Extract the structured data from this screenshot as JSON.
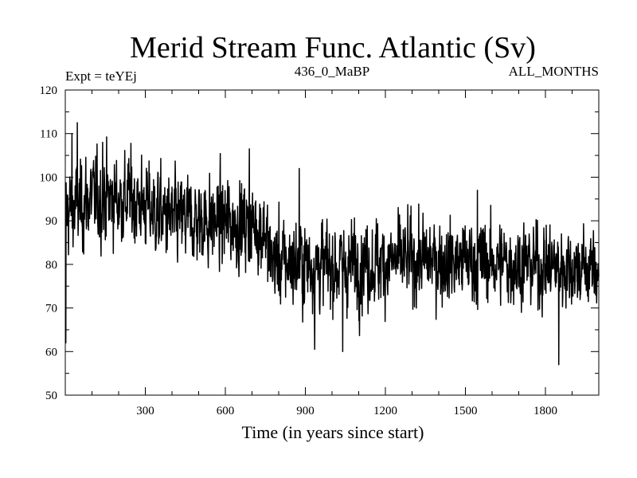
{
  "chart_data": {
    "type": "line",
    "title": "Merid Stream Func. Atlantic (Sv)",
    "subtitle_left": "Expt = teYEj",
    "subtitle_center": "436_0_MaBP",
    "subtitle_right": "ALL_MONTHS",
    "xlabel": "Time (in years since start)",
    "ylabel": "",
    "xlim": [
      0,
      2000
    ],
    "ylim": [
      50,
      120
    ],
    "xticks": [
      300,
      600,
      900,
      1200,
      1500,
      1800
    ],
    "yticks": [
      50,
      60,
      70,
      80,
      90,
      100,
      110,
      120
    ],
    "x_minor_step": 100,
    "y_minor_step": 5,
    "grid": false,
    "series": [
      {
        "name": "Merid Stream Func. Atlantic",
        "color": "#000000",
        "n_points": 2000,
        "x_start": 1,
        "x_step": 1,
        "mean_segments": [
          {
            "x": 0,
            "y": 92
          },
          {
            "x": 100,
            "y": 95
          },
          {
            "x": 250,
            "y": 95
          },
          {
            "x": 400,
            "y": 90
          },
          {
            "x": 550,
            "y": 90
          },
          {
            "x": 700,
            "y": 89
          },
          {
            "x": 750,
            "y": 88
          },
          {
            "x": 765,
            "y": 81
          },
          {
            "x": 1000,
            "y": 79.5
          },
          {
            "x": 1300,
            "y": 81
          },
          {
            "x": 1600,
            "y": 80.5
          },
          {
            "x": 2000,
            "y": 79
          }
        ],
        "noise_sd_segments": [
          {
            "x": 0,
            "y": 5
          },
          {
            "x": 760,
            "y": 5
          },
          {
            "x": 2000,
            "y": 4.5
          }
        ],
        "extremes": [
          {
            "x": 2,
            "y": 62
          },
          {
            "x": 25,
            "y": 110
          },
          {
            "x": 45,
            "y": 112.5
          },
          {
            "x": 140,
            "y": 108
          },
          {
            "x": 690,
            "y": 106.5
          },
          {
            "x": 877,
            "y": 102
          },
          {
            "x": 935,
            "y": 60.5
          },
          {
            "x": 1040,
            "y": 60
          },
          {
            "x": 1545,
            "y": 97
          },
          {
            "x": 1850,
            "y": 57
          }
        ]
      }
    ]
  }
}
